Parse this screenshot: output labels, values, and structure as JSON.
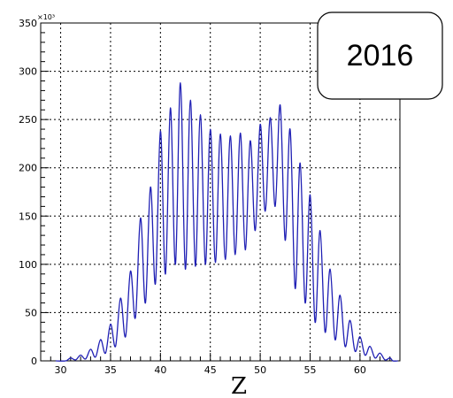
{
  "chart_data": {
    "type": "line",
    "title": "",
    "xlabel": "Z",
    "ylabel": "",
    "y_multiplier_label": "×10³",
    "annotation": "2016",
    "xlim": [
      28,
      64
    ],
    "ylim": [
      0,
      350
    ],
    "x_ticks": [
      30,
      35,
      40,
      45,
      50,
      55,
      60
    ],
    "y_ticks": [
      0,
      50,
      100,
      150,
      200,
      250,
      300,
      350
    ],
    "grid": true,
    "line_color": "#1f1fb4",
    "peaks": [
      {
        "z": 31,
        "y": 3
      },
      {
        "z": 32,
        "y": 6
      },
      {
        "z": 33,
        "y": 12
      },
      {
        "z": 34,
        "y": 22
      },
      {
        "z": 35,
        "y": 38
      },
      {
        "z": 36,
        "y": 65
      },
      {
        "z": 37,
        "y": 93
      },
      {
        "z": 38,
        "y": 148
      },
      {
        "z": 39,
        "y": 180
      },
      {
        "z": 40,
        "y": 238
      },
      {
        "z": 41,
        "y": 262
      },
      {
        "z": 42,
        "y": 288
      },
      {
        "z": 43,
        "y": 270
      },
      {
        "z": 44,
        "y": 255
      },
      {
        "z": 45,
        "y": 240
      },
      {
        "z": 46,
        "y": 235
      },
      {
        "z": 47,
        "y": 233
      },
      {
        "z": 48,
        "y": 236
      },
      {
        "z": 49,
        "y": 228
      },
      {
        "z": 50,
        "y": 245
      },
      {
        "z": 51,
        "y": 252
      },
      {
        "z": 52,
        "y": 265
      },
      {
        "z": 53,
        "y": 240
      },
      {
        "z": 54,
        "y": 205
      },
      {
        "z": 55,
        "y": 172
      },
      {
        "z": 56,
        "y": 135
      },
      {
        "z": 57,
        "y": 95
      },
      {
        "z": 58,
        "y": 68
      },
      {
        "z": 59,
        "y": 42
      },
      {
        "z": 60,
        "y": 25
      },
      {
        "z": 61,
        "y": 15
      },
      {
        "z": 62,
        "y": 8
      },
      {
        "z": 63,
        "y": 3
      }
    ],
    "valleys": [
      {
        "z": 30.5,
        "y": 0
      },
      {
        "z": 31.5,
        "y": 1
      },
      {
        "z": 32.5,
        "y": 2
      },
      {
        "z": 33.5,
        "y": 4
      },
      {
        "z": 34.5,
        "y": 8
      },
      {
        "z": 35.5,
        "y": 15
      },
      {
        "z": 36.5,
        "y": 25
      },
      {
        "z": 37.5,
        "y": 45
      },
      {
        "z": 38.5,
        "y": 60
      },
      {
        "z": 39.5,
        "y": 80
      },
      {
        "z": 40.5,
        "y": 90
      },
      {
        "z": 41.5,
        "y": 100
      },
      {
        "z": 42.5,
        "y": 95
      },
      {
        "z": 43.5,
        "y": 98
      },
      {
        "z": 44.5,
        "y": 100
      },
      {
        "z": 45.5,
        "y": 102
      },
      {
        "z": 46.5,
        "y": 105
      },
      {
        "z": 47.5,
        "y": 110
      },
      {
        "z": 48.5,
        "y": 115
      },
      {
        "z": 49.5,
        "y": 135
      },
      {
        "z": 50.5,
        "y": 155
      },
      {
        "z": 51.5,
        "y": 160
      },
      {
        "z": 52.5,
        "y": 125
      },
      {
        "z": 53.5,
        "y": 75
      },
      {
        "z": 54.5,
        "y": 60
      },
      {
        "z": 55.5,
        "y": 40
      },
      {
        "z": 56.5,
        "y": 30
      },
      {
        "z": 57.5,
        "y": 22
      },
      {
        "z": 58.5,
        "y": 15
      },
      {
        "z": 59.5,
        "y": 10
      },
      {
        "z": 60.5,
        "y": 6
      },
      {
        "z": 61.5,
        "y": 3
      },
      {
        "z": 62.5,
        "y": 1
      },
      {
        "z": 63.3,
        "y": 0
      }
    ]
  }
}
